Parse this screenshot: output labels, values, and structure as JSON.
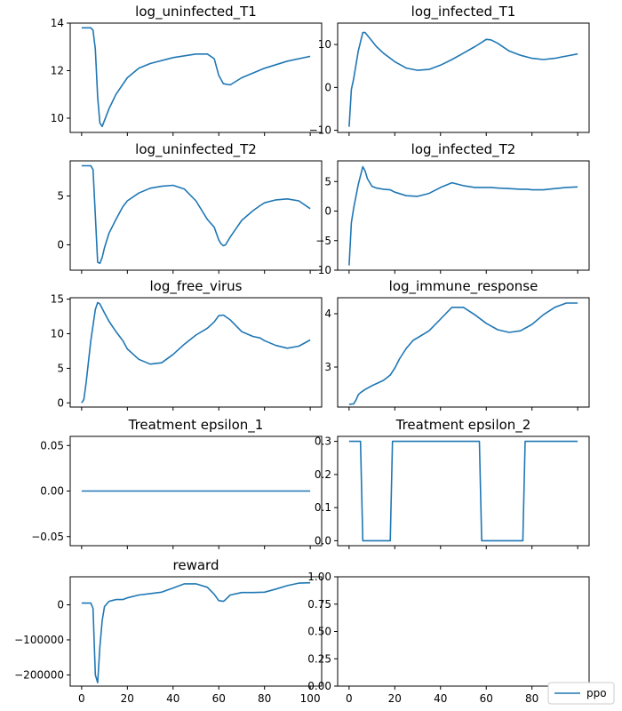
{
  "colors": {
    "series": "#1f77b4"
  },
  "legend": {
    "label": "ppo",
    "placement": "lower-right"
  },
  "chart_data": [
    {
      "type": "line",
      "title": "log_uninfected_T1",
      "xlim": [
        -5,
        105
      ],
      "ylim": [
        9.4,
        14.0
      ],
      "xticks": [
        0,
        20,
        40,
        60,
        80,
        100
      ],
      "show_xtick_labels": false,
      "yticks": [
        10,
        12,
        14
      ],
      "ytick_labels": [
        "10",
        "12",
        "14"
      ],
      "series": [
        {
          "name": "ppo",
          "x": [
            0,
            2,
            4,
            5,
            6,
            7,
            8,
            9,
            10,
            12,
            15,
            20,
            25,
            30,
            40,
            50,
            55,
            58,
            60,
            62,
            65,
            70,
            80,
            90,
            100
          ],
          "y": [
            13.8,
            13.8,
            13.8,
            13.7,
            12.9,
            10.9,
            9.8,
            9.65,
            9.9,
            10.4,
            11.0,
            11.7,
            12.1,
            12.3,
            12.55,
            12.7,
            12.7,
            12.5,
            11.8,
            11.45,
            11.4,
            11.7,
            12.1,
            12.4,
            12.6
          ]
        }
      ]
    },
    {
      "type": "line",
      "title": "log_infected_T1",
      "xlim": [
        -5,
        105
      ],
      "ylim": [
        -10.5,
        15.0
      ],
      "xticks": [
        0,
        20,
        40,
        60,
        80,
        100
      ],
      "show_xtick_labels": false,
      "yticks": [
        -10,
        0,
        10
      ],
      "ytick_labels": [
        "−10",
        "0",
        "10"
      ],
      "series": [
        {
          "name": "ppo",
          "x": [
            0,
            1,
            2,
            4,
            6,
            7,
            9,
            12,
            15,
            20,
            25,
            30,
            35,
            40,
            45,
            50,
            55,
            58,
            60,
            62,
            65,
            70,
            75,
            80,
            85,
            90,
            95,
            100
          ],
          "y": [
            -9.2,
            -0.5,
            2,
            8.5,
            12.8,
            12.8,
            11.5,
            9.5,
            8,
            6,
            4.5,
            4,
            4.2,
            5.2,
            6.5,
            8,
            9.5,
            10.5,
            11.2,
            11.1,
            10.3,
            8.5,
            7.5,
            6.8,
            6.5,
            6.8,
            7.3,
            7.8
          ]
        }
      ]
    },
    {
      "type": "line",
      "title": "log_uninfected_T2",
      "xlim": [
        -5,
        105
      ],
      "ylim": [
        -2.6,
        8.6
      ],
      "xticks": [
        0,
        20,
        40,
        60,
        80,
        100
      ],
      "show_xtick_labels": false,
      "yticks": [
        0,
        5
      ],
      "ytick_labels": [
        "0",
        "5"
      ],
      "series": [
        {
          "name": "ppo",
          "x": [
            0,
            2,
            4,
            5,
            6,
            7,
            8,
            9,
            10,
            12,
            15,
            18,
            20,
            25,
            30,
            35,
            40,
            45,
            50,
            55,
            58,
            60,
            61,
            62,
            63,
            65,
            70,
            75,
            78,
            80,
            85,
            90,
            95,
            100
          ],
          "y": [
            8.1,
            8.1,
            8.1,
            7.7,
            3,
            -1.8,
            -1.9,
            -1.3,
            -0.3,
            1.2,
            2.6,
            3.9,
            4.5,
            5.3,
            5.8,
            6.0,
            6.1,
            5.7,
            4.5,
            2.6,
            1.8,
            0.5,
            0.1,
            -0.1,
            0,
            0.8,
            2.5,
            3.5,
            4,
            4.3,
            4.6,
            4.7,
            4.5,
            3.7
          ]
        }
      ]
    },
    {
      "type": "line",
      "title": "log_infected_T2",
      "xlim": [
        -5,
        105
      ],
      "ylim": [
        -10.0,
        8.5
      ],
      "xticks": [
        0,
        20,
        40,
        60,
        80,
        100
      ],
      "show_xtick_labels": false,
      "yticks": [
        -10,
        -5,
        0,
        5
      ],
      "ytick_labels": [
        "−10",
        "−5",
        "0",
        "5"
      ],
      "series": [
        {
          "name": "ppo",
          "x": [
            0,
            1,
            2,
            4,
            6,
            7,
            8,
            10,
            12,
            15,
            18,
            20,
            25,
            30,
            35,
            40,
            45,
            50,
            55,
            58,
            60,
            62,
            65,
            70,
            75,
            78,
            80,
            85,
            90,
            95,
            100
          ],
          "y": [
            -9.2,
            -2,
            0.5,
            4.5,
            7.5,
            6.8,
            5.5,
            4.2,
            3.9,
            3.7,
            3.6,
            3.2,
            2.6,
            2.5,
            3.0,
            4.0,
            4.8,
            4.3,
            4.0,
            4.0,
            4.0,
            4.0,
            3.9,
            3.8,
            3.7,
            3.7,
            3.6,
            3.6,
            3.8,
            4.0,
            4.1
          ]
        }
      ]
    },
    {
      "type": "line",
      "title": "log_free_virus",
      "xlim": [
        -5,
        105
      ],
      "ylim": [
        -0.6,
        15.2
      ],
      "xticks": [
        0,
        20,
        40,
        60,
        80,
        100
      ],
      "show_xtick_labels": false,
      "yticks": [
        0,
        5,
        10,
        15
      ],
      "ytick_labels": [
        "0",
        "5",
        "10",
        "15"
      ],
      "series": [
        {
          "name": "ppo",
          "x": [
            0,
            1,
            2,
            4,
            6,
            7,
            8,
            10,
            12,
            15,
            18,
            20,
            25,
            30,
            35,
            40,
            45,
            50,
            55,
            58,
            60,
            62,
            65,
            70,
            75,
            78,
            80,
            85,
            90,
            95,
            100
          ],
          "y": [
            0,
            0.5,
            3,
            9,
            13.5,
            14.5,
            14.3,
            13,
            11.8,
            10.3,
            9,
            7.8,
            6.3,
            5.6,
            5.8,
            7,
            8.5,
            9.8,
            10.8,
            11.7,
            12.6,
            12.7,
            12,
            10.3,
            9.6,
            9.4,
            9,
            8.3,
            7.9,
            8.2,
            9.1
          ]
        }
      ]
    },
    {
      "type": "line",
      "title": "log_immune_response",
      "xlim": [
        -5,
        105
      ],
      "ylim": [
        2.25,
        4.3
      ],
      "xticks": [
        0,
        20,
        40,
        60,
        80,
        100
      ],
      "show_xtick_labels": false,
      "yticks": [
        3,
        4
      ],
      "ytick_labels": [
        "3",
        "4"
      ],
      "series": [
        {
          "name": "ppo",
          "x": [
            0,
            2,
            3,
            4,
            5,
            7,
            10,
            15,
            18,
            20,
            22,
            25,
            28,
            30,
            35,
            40,
            45,
            50,
            55,
            60,
            65,
            70,
            75,
            80,
            85,
            90,
            95,
            98,
            100
          ],
          "y": [
            2.3,
            2.31,
            2.38,
            2.48,
            2.52,
            2.58,
            2.65,
            2.75,
            2.85,
            2.98,
            3.15,
            3.35,
            3.5,
            3.55,
            3.68,
            3.9,
            4.12,
            4.12,
            3.98,
            3.82,
            3.7,
            3.65,
            3.68,
            3.8,
            3.98,
            4.12,
            4.2,
            4.2,
            4.2
          ]
        }
      ]
    },
    {
      "type": "line",
      "title": "Treatment epsilon_1",
      "xlim": [
        -5,
        105
      ],
      "ylim": [
        -0.06,
        0.06
      ],
      "xticks": [
        0,
        20,
        40,
        60,
        80,
        100
      ],
      "show_xtick_labels": false,
      "yticks": [
        -0.05,
        0.0,
        0.05
      ],
      "ytick_labels": [
        "−0.05",
        "0.00",
        "0.05"
      ],
      "series": [
        {
          "name": "ppo",
          "x": [
            0,
            100
          ],
          "y": [
            0,
            0
          ]
        }
      ]
    },
    {
      "type": "line",
      "title": "Treatment epsilon_2",
      "xlim": [
        -5,
        105
      ],
      "ylim": [
        -0.015,
        0.315
      ],
      "xticks": [
        0,
        20,
        40,
        60,
        80,
        100
      ],
      "show_xtick_labels": false,
      "yticks": [
        0.0,
        0.1,
        0.2,
        0.3
      ],
      "ytick_labels": [
        "0.0",
        "0.1",
        "0.2",
        "0.3"
      ],
      "series": [
        {
          "name": "ppo",
          "x": [
            0,
            5,
            6,
            18,
            19,
            57,
            58,
            76,
            77,
            100
          ],
          "y": [
            0.3,
            0.3,
            0,
            0,
            0.3,
            0.3,
            0,
            0,
            0.3,
            0.3
          ]
        }
      ]
    },
    {
      "type": "line",
      "title": "reward",
      "xlim": [
        -5,
        105
      ],
      "ylim": [
        -232000,
        80000
      ],
      "xticks": [
        0,
        20,
        40,
        60,
        80,
        100
      ],
      "show_xtick_labels": true,
      "xtick_labels": [
        "0",
        "20",
        "40",
        "60",
        "80",
        "100"
      ],
      "yticks": [
        -200000,
        -100000,
        0
      ],
      "ytick_labels": [
        "−200000",
        "−100000",
        "0"
      ],
      "series": [
        {
          "name": "ppo",
          "x": [
            0,
            2,
            4,
            5,
            6,
            7,
            8,
            9,
            10,
            12,
            15,
            18,
            20,
            25,
            30,
            35,
            40,
            45,
            50,
            55,
            58,
            60,
            62,
            63,
            65,
            70,
            75,
            80,
            85,
            90,
            95,
            100
          ],
          "y": [
            5000,
            5000,
            5000,
            -10000,
            -200000,
            -222000,
            -120000,
            -45000,
            -5000,
            10000,
            15000,
            15000,
            20000,
            28000,
            32000,
            36000,
            48000,
            60000,
            60000,
            50000,
            30000,
            12000,
            10000,
            15000,
            28000,
            35000,
            35000,
            36000,
            45000,
            55000,
            62000,
            63000
          ]
        }
      ]
    },
    {
      "type": "line",
      "title": "",
      "xlim": [
        -5,
        105
      ],
      "ylim": [
        0,
        1
      ],
      "xticks": [
        0,
        20,
        40,
        60,
        80,
        100
      ],
      "show_xtick_labels": true,
      "xtick_labels": [
        "0",
        "20",
        "40",
        "60",
        "80",
        "100"
      ],
      "yticks": [
        0,
        0.25,
        0.5,
        0.75,
        1.0
      ],
      "ytick_labels": [
        "0.00",
        "0.25",
        "0.50",
        "0.75",
        "1.00"
      ],
      "series": []
    }
  ]
}
